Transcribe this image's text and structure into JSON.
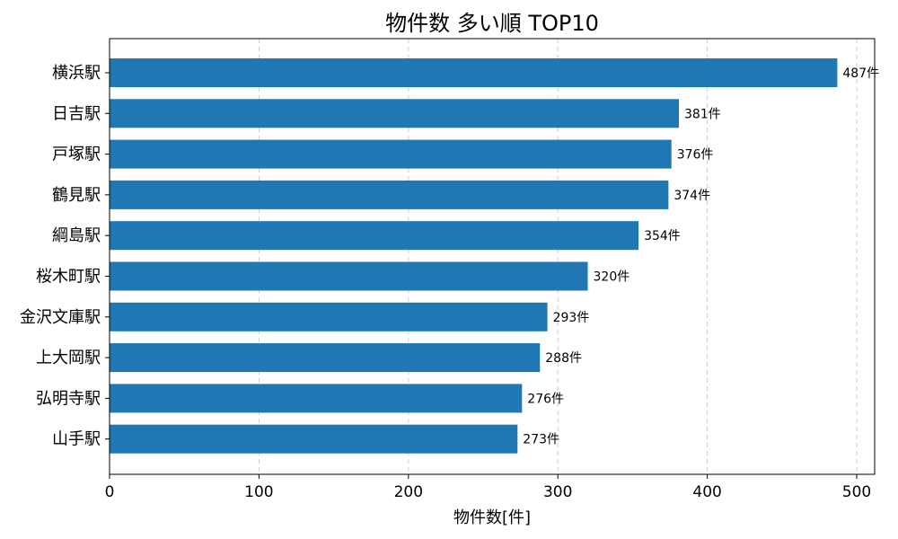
{
  "chart_data": {
    "type": "bar",
    "orientation": "horizontal",
    "title": "物件数 多い順 TOP10",
    "xlabel": "物件数[件]",
    "ylabel": "",
    "xlim": [
      0,
      512
    ],
    "xticks": [
      0,
      100,
      200,
      300,
      400,
      500
    ],
    "grid": "x-dashed",
    "bar_color": "#1f77b4",
    "value_suffix": "件",
    "categories": [
      "横浜駅",
      "日吉駅",
      "戸塚駅",
      "鶴見駅",
      "綱島駅",
      "桜木町駅",
      "金沢文庫駅",
      "上大岡駅",
      "弘明寺駅",
      "山手駅"
    ],
    "values": [
      487,
      381,
      376,
      374,
      354,
      320,
      293,
      288,
      276,
      273
    ]
  }
}
